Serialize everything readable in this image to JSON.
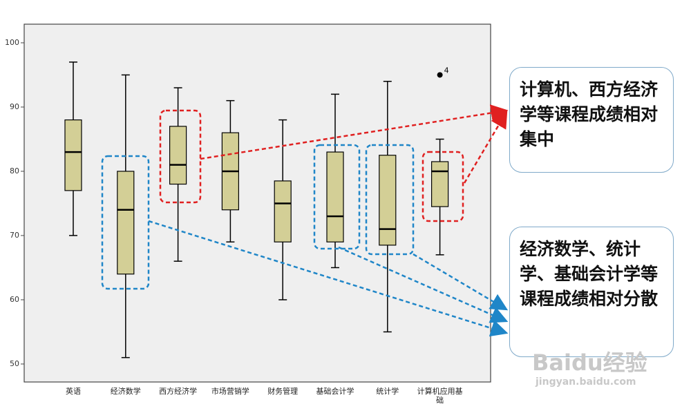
{
  "chart_data": {
    "type": "box",
    "categories": [
      "英语",
      "经济数学",
      "西方经济学",
      "市场营销学",
      "财务管理",
      "基础会计学",
      "统计学",
      "计算机应用基础"
    ],
    "min": [
      70,
      51,
      66,
      69,
      60,
      65,
      55,
      67
    ],
    "q1": [
      77,
      64,
      78,
      74,
      69,
      69,
      68.5,
      74.5
    ],
    "median": [
      83,
      74,
      81,
      80,
      75,
      73,
      71,
      80
    ],
    "q3": [
      88,
      80,
      87,
      86,
      78.5,
      83,
      82.5,
      81.5
    ],
    "max": [
      97,
      95,
      93,
      91,
      88,
      92,
      94,
      85
    ],
    "outliers": [
      [],
      [],
      [],
      [],
      [],
      [],
      [],
      [
        95
      ]
    ],
    "outlier_labels": [
      [],
      [],
      [],
      [],
      [],
      [],
      [],
      [
        "4"
      ]
    ],
    "color": "#d3cf96",
    "ylim": [
      47.2,
      102.9
    ],
    "yticks": [
      50,
      60,
      70,
      80,
      90,
      100
    ]
  },
  "annotations": [
    "计算机、西方经济学等课程成绩相对集中",
    "经济数学、统计学、基础会计学等课程成绩相对分散"
  ],
  "watermark": [
    "Baidu经验",
    "jingyan.baidu.com"
  ]
}
